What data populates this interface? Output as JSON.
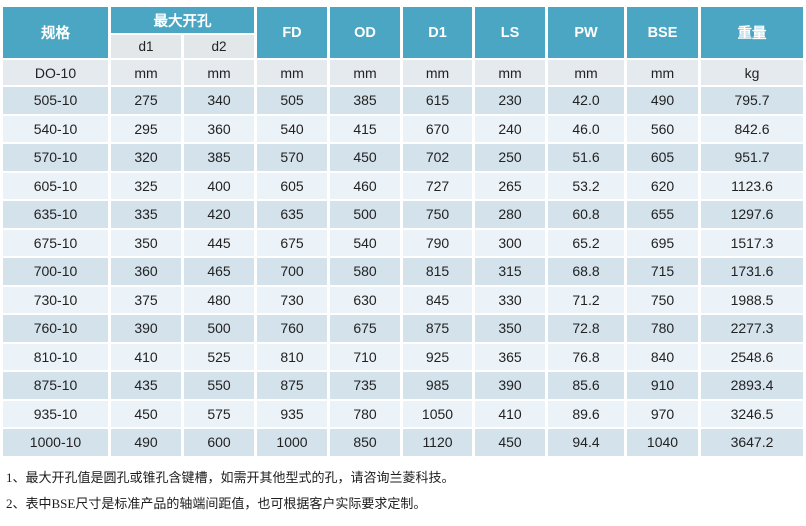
{
  "colors": {
    "header_teal": "#4aa6c2",
    "subheader_gray": "#e2e7ea",
    "units_row_gray": "#e5eaee",
    "row_dark": "#d4e2ec",
    "row_light": "#ecf3f8",
    "header_text": "#ffffff",
    "text_dark": "#222222"
  },
  "table": {
    "header": {
      "spec": "规格",
      "max_opening": "最大开孔",
      "d1": "d1",
      "d2": "d2",
      "measure_cols": [
        "FD",
        "OD",
        "D1",
        "LS",
        "PW",
        "BSE"
      ],
      "weight": "重量"
    },
    "units_row": [
      "DO-10",
      "mm",
      "mm",
      "mm",
      "mm",
      "mm",
      "mm",
      "mm",
      "mm",
      "kg"
    ],
    "rows": [
      [
        "505-10",
        "275",
        "340",
        "505",
        "385",
        "615",
        "230",
        "42.0",
        "490",
        "795.7"
      ],
      [
        "540-10",
        "295",
        "360",
        "540",
        "415",
        "670",
        "240",
        "46.0",
        "560",
        "842.6"
      ],
      [
        "570-10",
        "320",
        "385",
        "570",
        "450",
        "702",
        "250",
        "51.6",
        "605",
        "951.7"
      ],
      [
        "605-10",
        "325",
        "400",
        "605",
        "460",
        "727",
        "265",
        "53.2",
        "620",
        "1123.6"
      ],
      [
        "635-10",
        "335",
        "420",
        "635",
        "500",
        "750",
        "280",
        "60.8",
        "655",
        "1297.6"
      ],
      [
        "675-10",
        "350",
        "445",
        "675",
        "540",
        "790",
        "300",
        "65.2",
        "695",
        "1517.3"
      ],
      [
        "700-10",
        "360",
        "465",
        "700",
        "580",
        "815",
        "315",
        "68.8",
        "715",
        "1731.6"
      ],
      [
        "730-10",
        "375",
        "480",
        "730",
        "630",
        "845",
        "330",
        "71.2",
        "750",
        "1988.5"
      ],
      [
        "760-10",
        "390",
        "500",
        "760",
        "675",
        "875",
        "350",
        "72.8",
        "780",
        "2277.3"
      ],
      [
        "810-10",
        "410",
        "525",
        "810",
        "710",
        "925",
        "365",
        "76.8",
        "840",
        "2548.6"
      ],
      [
        "875-10",
        "435",
        "550",
        "875",
        "735",
        "985",
        "390",
        "85.6",
        "910",
        "2893.4"
      ],
      [
        "935-10",
        "450",
        "575",
        "935",
        "780",
        "1050",
        "410",
        "89.6",
        "970",
        "3246.5"
      ],
      [
        "1000-10",
        "490",
        "600",
        "1000",
        "850",
        "1120",
        "450",
        "94.4",
        "1040",
        "3647.2"
      ]
    ]
  },
  "notes": [
    "1、最大开孔值是圆孔或锥孔含键槽，如需开其他型式的孔，请咨询兰菱科技。",
    "2、表中BSE尺寸是标准产品的轴端间距值，也可根据客户实际要求定制。"
  ]
}
